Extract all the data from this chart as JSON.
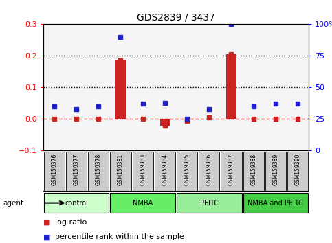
{
  "title": "GDS2839 / 3437",
  "samples": [
    "GSM159376",
    "GSM159377",
    "GSM159378",
    "GSM159381",
    "GSM159383",
    "GSM159384",
    "GSM159385",
    "GSM159386",
    "GSM159387",
    "GSM159388",
    "GSM159389",
    "GSM159390"
  ],
  "log_ratio": [
    0.0,
    0.0,
    0.0,
    0.185,
    0.0,
    -0.02,
    -0.005,
    0.005,
    0.205,
    0.0,
    0.0,
    0.0
  ],
  "percentile_rank": [
    35,
    33,
    35,
    90,
    37,
    38,
    25,
    33,
    100,
    35,
    37,
    37
  ],
  "groups": [
    {
      "label": "control",
      "start": 0,
      "end": 3,
      "color": "#ccffcc"
    },
    {
      "label": "NMBA",
      "start": 3,
      "end": 6,
      "color": "#66ee66"
    },
    {
      "label": "PEITC",
      "start": 6,
      "end": 9,
      "color": "#99ee99"
    },
    {
      "label": "NMBA and PEITC",
      "start": 9,
      "end": 12,
      "color": "#44cc44"
    }
  ],
  "ylim_left": [
    -0.1,
    0.3
  ],
  "ylim_right": [
    0,
    100
  ],
  "left_ticks": [
    -0.1,
    0.0,
    0.1,
    0.2,
    0.3
  ],
  "right_ticks": [
    0,
    25,
    50,
    75,
    100
  ],
  "right_tick_labels": [
    "0",
    "25",
    "50",
    "75",
    "100%"
  ],
  "hlines": [
    0.1,
    0.2
  ],
  "bar_color": "#cc2222",
  "dot_color": "#2222cc",
  "zero_line_color": "#cc3333",
  "background_color": "#ffffff",
  "sample_bg_color": "#cccccc",
  "agent_label": "agent"
}
